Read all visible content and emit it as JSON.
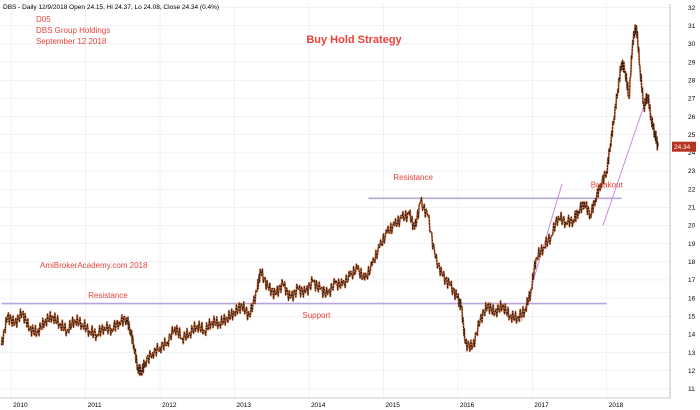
{
  "header": "DBS - Daily 12/9/2018 Open 24.15, Hi 24.37, Lo 24.08, Close 24.34 (0.4%)",
  "chart_data": {
    "type": "line",
    "title": "Buy Hold Strategy",
    "info_lines": [
      "D05",
      "DBS Group Holdings",
      "September 12 2018"
    ],
    "watermark": "AmiBrokerAcademy.com   2018",
    "xlabel": "",
    "ylabel": "",
    "xlim": [
      2009.85,
      2018.85
    ],
    "ylim": [
      10.5,
      32.2
    ],
    "x_ticks": [
      {
        "label": "2010",
        "x": 2010
      },
      {
        "label": "2011",
        "x": 2011
      },
      {
        "label": "2012",
        "x": 2012
      },
      {
        "label": "2013",
        "x": 2013
      },
      {
        "label": "2014",
        "x": 2014
      },
      {
        "label": "2015",
        "x": 2015
      },
      {
        "label": "2016",
        "x": 2016
      },
      {
        "label": "2017",
        "x": 2017
      },
      {
        "label": "2018",
        "x": 2018
      }
    ],
    "y_ticks": [
      11,
      12,
      13,
      14,
      15,
      16,
      17,
      18,
      19,
      20,
      21,
      22,
      23,
      24,
      25,
      26,
      27,
      28,
      29,
      30,
      31,
      32
    ],
    "grid": true,
    "price_tag": {
      "label": "24.34",
      "value": 24.34,
      "color": "#b5331f"
    },
    "series": [
      {
        "x": [
          2009.87,
          2009.95,
          2010.05,
          2010.15,
          2010.25,
          2010.35,
          2010.45,
          2010.55,
          2010.65,
          2010.75,
          2010.85,
          2010.95,
          2011.05,
          2011.15,
          2011.25,
          2011.35,
          2011.45,
          2011.55,
          2011.6,
          2011.65,
          2011.7,
          2011.75,
          2011.8,
          2011.9,
          2012.0,
          2012.1,
          2012.2,
          2012.3,
          2012.4,
          2012.5,
          2012.6,
          2012.7,
          2012.8,
          2012.9,
          2013.0,
          2013.1,
          2013.2,
          2013.3,
          2013.35,
          2013.45,
          2013.55,
          2013.65,
          2013.75,
          2013.85,
          2013.95,
          2014.05,
          2014.15,
          2014.25,
          2014.35,
          2014.45,
          2014.55,
          2014.65,
          2014.75,
          2014.85,
          2014.95,
          2015.05,
          2015.15,
          2015.25,
          2015.35,
          2015.42,
          2015.5,
          2015.6,
          2015.7,
          2015.8,
          2015.9,
          2016.0,
          2016.05,
          2016.1,
          2016.2,
          2016.3,
          2016.4,
          2016.5,
          2016.6,
          2016.7,
          2016.8,
          2016.9,
          2016.98,
          2017.05,
          2017.15,
          2017.25,
          2017.35,
          2017.45,
          2017.55,
          2017.62,
          2017.7,
          2017.78,
          2017.85,
          2017.92,
          2018.0,
          2018.05,
          2018.1,
          2018.15,
          2018.2,
          2018.25,
          2018.3,
          2018.35,
          2018.4,
          2018.45,
          2018.5,
          2018.55,
          2018.6,
          2018.65,
          2018.69
        ],
        "values": [
          13.4,
          15.0,
          14.6,
          15.2,
          14.3,
          14.1,
          14.7,
          15.0,
          14.6,
          14.2,
          14.8,
          14.6,
          14.2,
          14.0,
          14.4,
          14.3,
          14.7,
          14.9,
          14.3,
          13.4,
          12.2,
          12.0,
          12.5,
          13.0,
          13.3,
          13.6,
          14.4,
          13.8,
          14.1,
          14.5,
          14.2,
          14.7,
          14.6,
          14.9,
          15.2,
          15.6,
          15.0,
          16.4,
          17.5,
          16.6,
          16.2,
          16.8,
          16.0,
          16.5,
          16.3,
          16.9,
          16.5,
          16.2,
          16.8,
          16.7,
          17.2,
          17.6,
          17.0,
          17.8,
          18.8,
          19.6,
          20.0,
          20.4,
          20.6,
          19.8,
          21.3,
          20.5,
          18.2,
          17.2,
          16.7,
          16.0,
          15.5,
          13.5,
          13.3,
          14.8,
          15.6,
          15.2,
          15.6,
          15.0,
          14.9,
          15.3,
          16.3,
          18.2,
          18.8,
          19.4,
          20.5,
          20.2,
          20.3,
          20.8,
          21.3,
          20.6,
          21.5,
          22.3,
          23.0,
          24.5,
          26.0,
          27.5,
          29.0,
          28.5,
          27.0,
          30.2,
          31.0,
          28.5,
          26.5,
          27.2,
          25.8,
          25.0,
          24.34
        ]
      }
    ],
    "reference_lines": [
      {
        "label": "Support",
        "y": 15.7,
        "x_start": 2009.87,
        "x_end": 2018.0
      },
      {
        "label": "Resistance",
        "y": 21.5,
        "x_start": 2014.8,
        "x_end": 2018.2
      }
    ],
    "trend_lines": [
      {
        "x1": 2016.85,
        "y1": 14.7,
        "x2": 2017.4,
        "y2": 22.3
      },
      {
        "x1": 2017.95,
        "y1": 20.0,
        "x2": 2018.55,
        "y2": 27.2
      }
    ],
    "annotations": [
      {
        "text": "Resistance",
        "x": 2011.3,
        "y": 16.0
      },
      {
        "text": "Support",
        "x": 2014.1,
        "y": 14.9
      },
      {
        "text": "Resistance",
        "x": 2015.4,
        "y": 22.5
      },
      {
        "text": "Breakout",
        "x": 2018.0,
        "y": 22.1
      }
    ]
  }
}
